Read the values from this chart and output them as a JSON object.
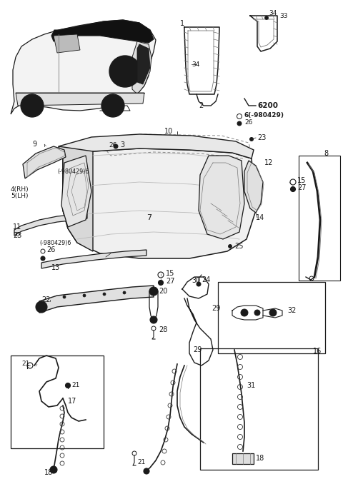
{
  "bg": "#ffffff",
  "lc": "#1a1a1a",
  "gray": "#777777",
  "lgray": "#cccccc",
  "dkgray": "#333333",
  "fig_w": 4.8,
  "fig_h": 6.85,
  "dpi": 100
}
